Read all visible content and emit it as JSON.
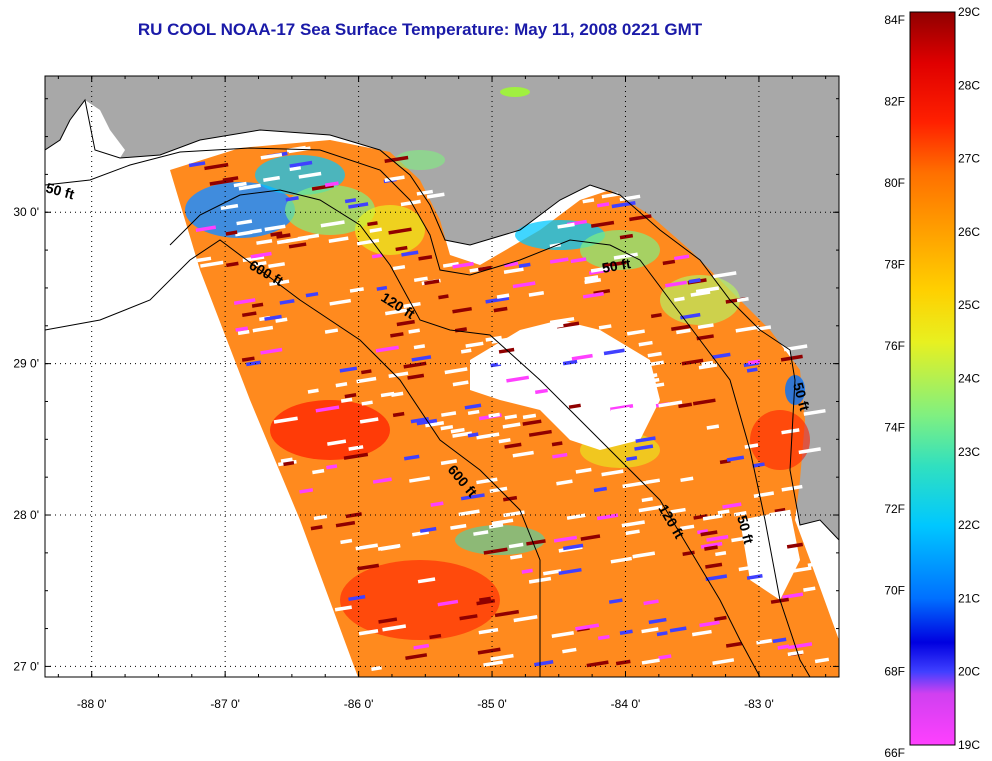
{
  "title": "RU COOL  NOAA-17  Sea Surface Temperature:  May 11, 2008 0221 GMT",
  "map": {
    "lon_range": [
      -88.35,
      -82.4
    ],
    "lat_range": [
      26.93,
      30.9
    ],
    "lon_ticks": [
      {
        "value": -88,
        "label": "-88 0'"
      },
      {
        "value": -87,
        "label": "-87 0'"
      },
      {
        "value": -86,
        "label": "-86 0'"
      },
      {
        "value": -85,
        "label": "-85 0'"
      },
      {
        "value": -84,
        "label": "-84 0'"
      },
      {
        "value": -83,
        "label": "-83 0'"
      }
    ],
    "lat_ticks": [
      {
        "value": 30,
        "label": "30 0'"
      },
      {
        "value": 29,
        "label": "29 0'"
      },
      {
        "value": 28,
        "label": "28 0'"
      },
      {
        "value": 27,
        "label": "27 0'"
      }
    ],
    "contour_labels": [
      {
        "text": "50 ft"
      },
      {
        "text": "600 ft"
      },
      {
        "text": "120 ft"
      },
      {
        "text": "50 ft"
      },
      {
        "text": "600 ft"
      },
      {
        "text": "120 ft"
      },
      {
        "text": "50 ft"
      },
      {
        "text": "50 ft"
      }
    ],
    "colors": {
      "land": "#a8a8a8",
      "no_data": "#ffffff",
      "coastline": "#000000",
      "isobath": "#000000"
    }
  },
  "colorbar": {
    "fahrenheit_labels": [
      "84F",
      "82F",
      "80F",
      "78F",
      "76F",
      "74F",
      "72F",
      "70F",
      "68F",
      "66F"
    ],
    "celsius_labels": [
      "29C",
      "28C",
      "27C",
      "26C",
      "25C",
      "24C",
      "23C",
      "22C",
      "21C",
      "20C",
      "19C"
    ],
    "min_c": 19,
    "max_c": 29,
    "colormap": [
      "#ff40ff",
      "#d040f0",
      "#4040ff",
      "#0000e0",
      "#0070ff",
      "#00c8ff",
      "#30e0c0",
      "#80f080",
      "#e8f020",
      "#ffd000",
      "#ffa000",
      "#ff7000",
      "#ff2000",
      "#e00000",
      "#900000"
    ]
  }
}
